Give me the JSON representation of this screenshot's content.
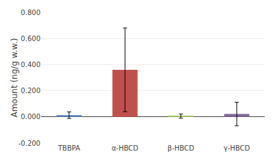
{
  "chart_data": {
    "type": "bar",
    "categories": [
      "TBBPA",
      "α-HBCD",
      "β-HBCD",
      "γ-HBCD"
    ],
    "values": [
      0.013,
      0.36,
      0.006,
      0.022
    ],
    "errors": [
      0.025,
      0.32,
      0.016,
      0.09
    ],
    "colors": [
      "#5B7FBC",
      "#C0504D",
      "#9BBB59",
      "#7F6699"
    ],
    "ylabel": "Amount (ng/g w.w.)",
    "ylim": [
      -0.2,
      0.8
    ],
    "yticks": [
      {
        "value": -0.2,
        "label": "-0.200"
      },
      {
        "value": 0,
        "label": "0.000"
      },
      {
        "value": 0.2,
        "label": "0.200"
      },
      {
        "value": 0.4,
        "label": "0.400"
      },
      {
        "value": 0.6,
        "label": "0.600"
      },
      {
        "value": 0.8,
        "label": "0.800"
      }
    ],
    "grid": true
  }
}
